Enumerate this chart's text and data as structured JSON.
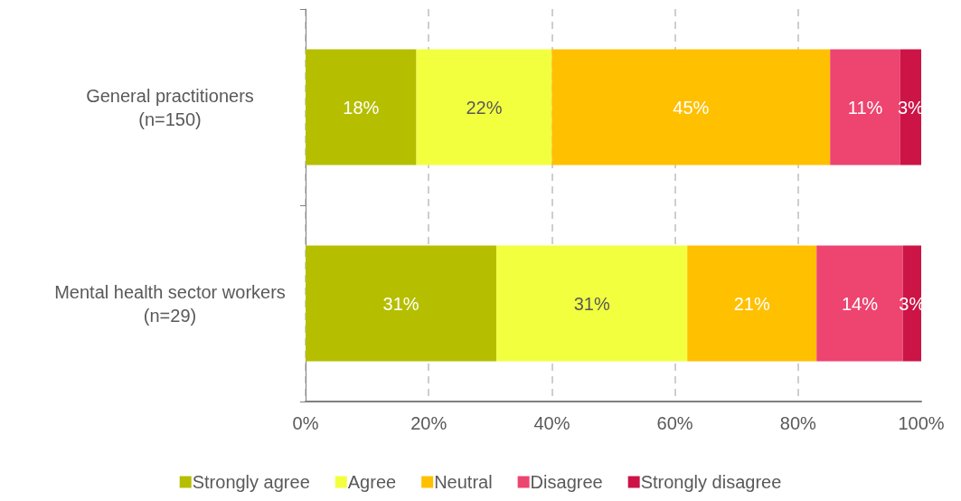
{
  "chart_data": {
    "type": "bar",
    "orientation": "horizontal",
    "stacked": true,
    "categories": [
      "General practitioners\n(n=150)",
      "Mental health sector workers\n(n=29)"
    ],
    "series": [
      {
        "name": "Strongly agree",
        "color": "#b5bf00",
        "values": [
          18,
          31
        ],
        "value_labels": [
          "18%",
          "31%"
        ]
      },
      {
        "name": "Agree",
        "color": "#f2ff3f",
        "values": [
          22,
          31
        ],
        "value_labels": [
          "22%",
          "31%"
        ]
      },
      {
        "name": "Neutral",
        "color": "#ffc000",
        "values": [
          45.2,
          21
        ],
        "value_labels": [
          "45%",
          "21%"
        ]
      },
      {
        "name": "Disagree",
        "color": "#ed4470",
        "values": [
          11.4,
          14
        ],
        "value_labels": [
          "11%",
          "14%"
        ]
      },
      {
        "name": "Strongly disagree",
        "color": "#cc1447",
        "values": [
          3.4,
          3
        ],
        "value_labels": [
          "3%",
          "3%"
        ]
      }
    ],
    "xlim": [
      0,
      100
    ],
    "xticks": [
      {
        "value": 0,
        "label": "0%"
      },
      {
        "value": 20,
        "label": "20%"
      },
      {
        "value": 40,
        "label": "40%"
      },
      {
        "value": 60,
        "label": "60%"
      },
      {
        "value": 80,
        "label": "80%"
      },
      {
        "value": 100,
        "label": "100%"
      }
    ],
    "grid": "x",
    "legend": "bottom"
  }
}
